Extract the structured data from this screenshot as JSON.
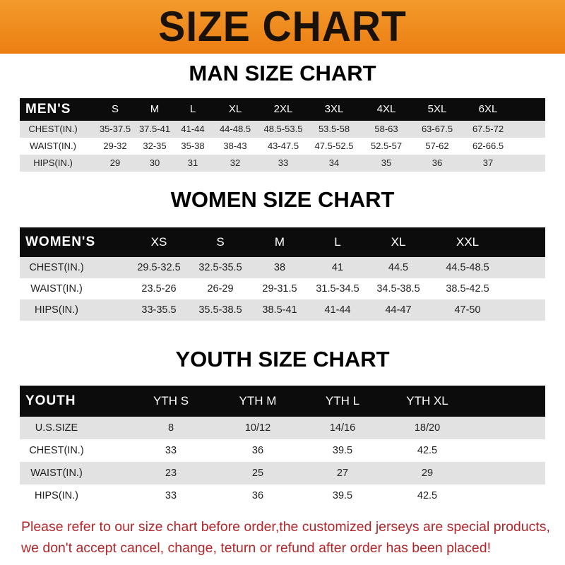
{
  "banner": {
    "title": "SIZE CHART",
    "color": "#ee8418"
  },
  "men": {
    "title": "MAN SIZE CHART",
    "header_label": "MEN'S",
    "sizes": [
      "S",
      "M",
      "L",
      "XL",
      "2XL",
      "3XL",
      "4XL",
      "5XL",
      "6XL"
    ],
    "rows": [
      {
        "label": "CHEST(IN.)",
        "values": [
          "35-37.5",
          "37.5-41",
          "41-44",
          "44-48.5",
          "48.5-53.5",
          "53.5-58",
          "58-63",
          "63-67.5",
          "67.5-72"
        ]
      },
      {
        "label": "WAIST(IN.)",
        "values": [
          "29-32",
          "32-35",
          "35-38",
          "38-43",
          "43-47.5",
          "47.5-52.5",
          "52.5-57",
          "57-62",
          "62-66.5"
        ]
      },
      {
        "label": "HIPS(IN.)",
        "values": [
          "29",
          "30",
          "31",
          "32",
          "33",
          "34",
          "35",
          "36",
          "37"
        ]
      }
    ]
  },
  "women": {
    "title": "WOMEN SIZE CHART",
    "header_label": "WOMEN'S",
    "sizes": [
      "XS",
      "S",
      "M",
      "L",
      "XL",
      "XXL"
    ],
    "rows": [
      {
        "label": "CHEST(IN.)",
        "values": [
          "29.5-32.5",
          "32.5-35.5",
          "38",
          "41",
          "44.5",
          "44.5-48.5"
        ]
      },
      {
        "label": "WAIST(IN.)",
        "values": [
          "23.5-26",
          "26-29",
          "29-31.5",
          "31.5-34.5",
          "34.5-38.5",
          "38.5-42.5"
        ]
      },
      {
        "label": "HIPS(IN.)",
        "values": [
          "33-35.5",
          "35.5-38.5",
          "38.5-41",
          "41-44",
          "44-47",
          "47-50"
        ]
      }
    ]
  },
  "youth": {
    "title": "YOUTH SIZE CHART",
    "header_label": "YOUTH",
    "sizes": [
      "YTH S",
      "YTH M",
      "YTH L",
      "YTH XL"
    ],
    "rows": [
      {
        "label": "U.S.SIZE",
        "values": [
          "8",
          "10/12",
          "14/16",
          "18/20"
        ]
      },
      {
        "label": "CHEST(IN.)",
        "values": [
          "33",
          "36",
          "39.5",
          "42.5"
        ]
      },
      {
        "label": "WAIST(IN.)",
        "values": [
          "23",
          "25",
          "27",
          "29"
        ]
      },
      {
        "label": "HIPS(IN.)",
        "values": [
          "33",
          "36",
          "39.5",
          "42.5"
        ]
      }
    ]
  },
  "notice": {
    "line1": "Please refer to our size chart before order,the customized jerseys are special products,",
    "line2": "we don't accept cancel, change, teturn or refund after order has been placed!",
    "color": "#b3262a"
  }
}
